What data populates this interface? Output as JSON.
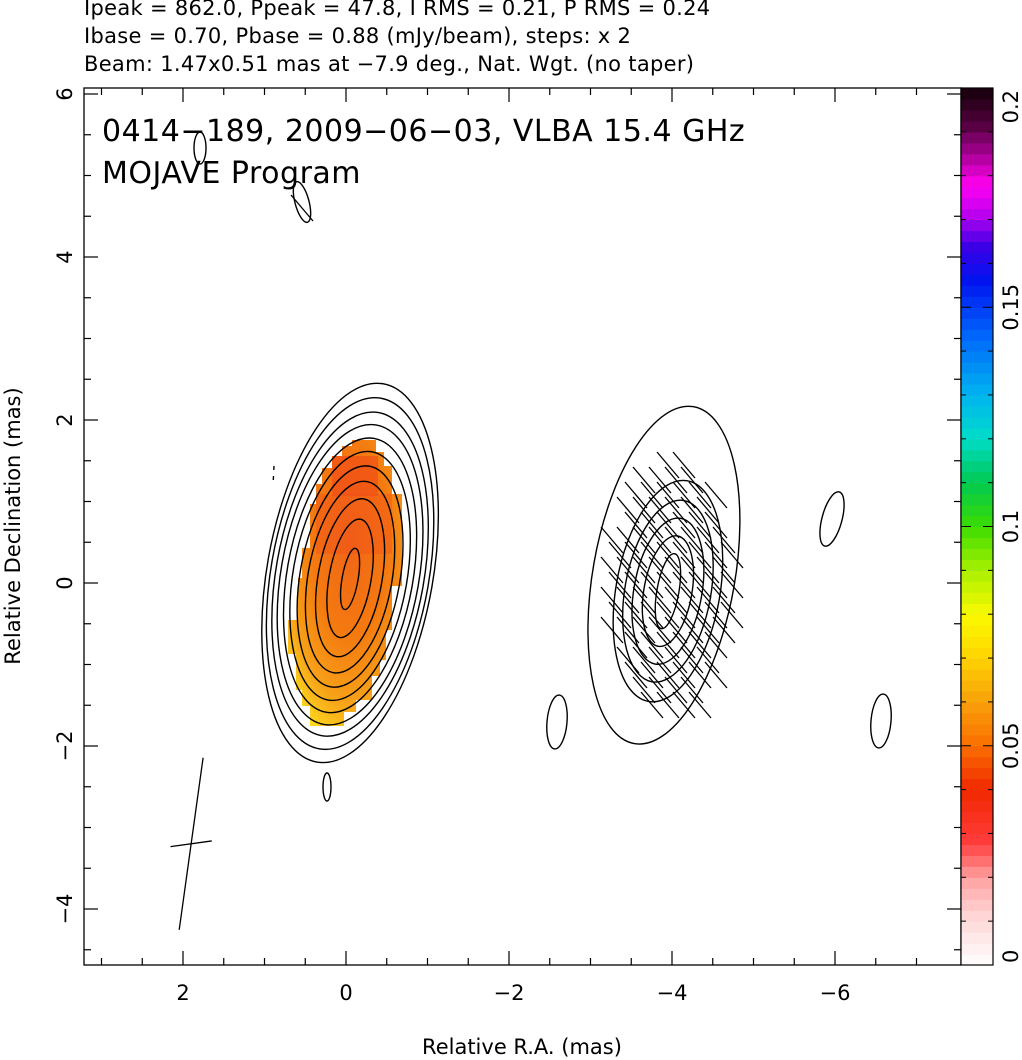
{
  "header": {
    "line1": "Ipeak = 862.0, Ppeak = 47.8, I RMS = 0.21, P RMS = 0.24",
    "line2": "Ibase = 0.70, Pbase = 0.88 (mJy/beam), steps: x 2",
    "line3": "Beam: 1.47x0.51 mas at −7.9 deg., Nat. Wgt. (no taper)"
  },
  "chart_data": {
    "type": "heatmap",
    "title": "0414−189, 2009−06−03, VLBA 15.4 GHz",
    "subtitle": "MOJAVE Program",
    "xlabel": "Relative R.A. (mas)",
    "ylabel": "Relative Declination (mas)",
    "xlim": [
      3.2,
      -7.6
    ],
    "ylim": [
      -4.7,
      6.1
    ],
    "xticks": [
      2,
      0,
      -2,
      -4,
      -6
    ],
    "xtick_labels": [
      "2",
      "0",
      "−2",
      "−4",
      "−6"
    ],
    "yticks": [
      -4,
      -2,
      0,
      2,
      4,
      6
    ],
    "ytick_labels": [
      "−4",
      "−2",
      "0",
      "2",
      "4",
      "6"
    ],
    "colorbar": {
      "range": [
        0,
        0.2
      ],
      "ticks": [
        0,
        0.05,
        0.1,
        0.15,
        0.2
      ],
      "tick_labels": [
        "0",
        "0.05",
        "0.1",
        "0.15",
        "0.2"
      ]
    },
    "components": [
      {
        "x": -0.05,
        "y": 0.05,
        "contour_count": 11,
        "contour_outer_semi_axes": [
          1.0,
          2.35
        ],
        "polarized_fraction_approx": 0.04
      },
      {
        "x": -3.95,
        "y": -0.1,
        "contour_count": 6,
        "contour_outer_semi_axes": [
          1.0,
          2.2
        ]
      }
    ],
    "beam": {
      "major_mas": 1.47,
      "minor_mas": 0.51,
      "pa_deg": -7.9,
      "center": [
        1.9,
        -3.2
      ]
    }
  }
}
